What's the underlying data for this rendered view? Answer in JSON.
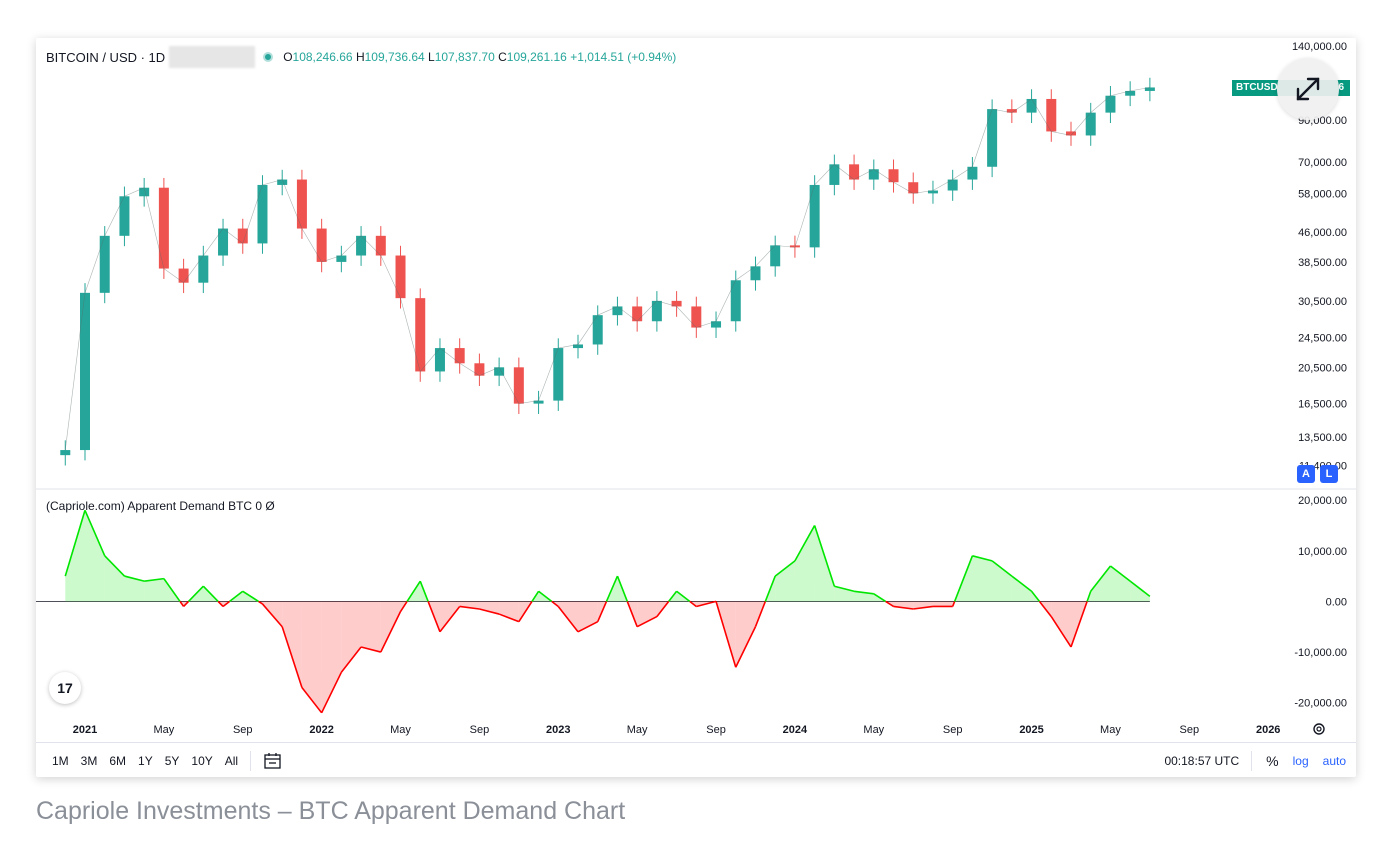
{
  "header": {
    "symbol": "BITCOIN / USD · 1D",
    "open_label": "O",
    "open": "108,246.66",
    "high_label": "H",
    "high": "109,736.64",
    "low_label": "L",
    "low": "107,837.70",
    "close_label": "C",
    "close": "109,261.16",
    "change": "+1,014.51 (+0.94%)"
  },
  "price_tag": "BTCUSD",
  "price_tag_tail": "6",
  "scale_buttons": {
    "a": "A",
    "l": "L"
  },
  "indicator": {
    "label": "(Capriole.com) Apparent Demand BTC 0  Ø"
  },
  "tv_logo": "17",
  "bottom_bar": {
    "ranges": [
      "1M",
      "3M",
      "6M",
      "1Y",
      "5Y",
      "10Y",
      "All"
    ],
    "time": "00:18:57 UTC",
    "percent": "%",
    "log": "log",
    "auto": "auto"
  },
  "caption": "Capriole Investments – BTC Apparent Demand Chart",
  "colors": {
    "up": "#26a69a",
    "down": "#ef5350",
    "pos": "#00e600",
    "neg": "#ff0000",
    "accent": "#2962ff"
  },
  "chart_data": [
    {
      "type": "candlestick",
      "title": "BITCOIN / USD · 1D",
      "yscale": "log",
      "ylim": [
        11500,
        140000
      ],
      "y_ticks": [
        "140,000.00",
        "90,000.00",
        "70,000.00",
        "58,000.00",
        "46,000.00",
        "38,500.00",
        "30,500.00",
        "24,500.00",
        "20,500.00",
        "16,500.00",
        "13,500.00",
        "11,400.00"
      ],
      "y_tick_values": [
        140000,
        90000,
        70000,
        58000,
        46000,
        38500,
        30500,
        24500,
        20500,
        16500,
        13500,
        11400
      ],
      "x_ticks": [
        "2021",
        "May",
        "Sep",
        "2022",
        "May",
        "Sep",
        "2023",
        "May",
        "Sep",
        "2024",
        "May",
        "Sep",
        "2025",
        "May",
        "Sep",
        "2026"
      ],
      "x_tick_dates": [
        "2021-01",
        "2021-05",
        "2021-09",
        "2022-01",
        "2022-05",
        "2022-09",
        "2023-01",
        "2023-05",
        "2023-09",
        "2024-01",
        "2024-05",
        "2024-09",
        "2025-01",
        "2025-05",
        "2025-09",
        "2026-01"
      ],
      "series": [
        {
          "dates": [
            "2020-12",
            "2021-01",
            "2021-02",
            "2021-03",
            "2021-04",
            "2021-05",
            "2021-06",
            "2021-07",
            "2021-08",
            "2021-09",
            "2021-10",
            "2021-11",
            "2021-12",
            "2022-01",
            "2022-02",
            "2022-03",
            "2022-04",
            "2022-05",
            "2022-06",
            "2022-07",
            "2022-08",
            "2022-09",
            "2022-10",
            "2022-11",
            "2022-12",
            "2023-01",
            "2023-02",
            "2023-03",
            "2023-04",
            "2023-05",
            "2023-06",
            "2023-07",
            "2023-08",
            "2023-09",
            "2023-10",
            "2023-11",
            "2023-12",
            "2024-01",
            "2024-02",
            "2024-03",
            "2024-04",
            "2024-05",
            "2024-06",
            "2024-07",
            "2024-08",
            "2024-09",
            "2024-10",
            "2024-11",
            "2024-12",
            "2025-01",
            "2025-02",
            "2025-03",
            "2025-04",
            "2025-05",
            "2025-06",
            "2025-07"
          ],
          "values": [
            12500,
            32000,
            45000,
            57000,
            60000,
            37000,
            34000,
            40000,
            47000,
            43000,
            61000,
            63000,
            47000,
            38500,
            40000,
            45000,
            40000,
            31000,
            20000,
            23000,
            21000,
            19500,
            20500,
            16500,
            16800,
            23000,
            23500,
            28000,
            29500,
            27000,
            30500,
            29500,
            26000,
            27000,
            34500,
            37500,
            42500,
            42000,
            61000,
            69000,
            63000,
            67000,
            62000,
            58000,
            59000,
            63000,
            68000,
            96000,
            94000,
            102000,
            84000,
            82000,
            94000,
            104000,
            107000,
            109261
          ]
        }
      ]
    },
    {
      "type": "area",
      "title": "(Capriole.com) Apparent Demand BTC 0 Ø",
      "ylim": [
        -25000,
        22000
      ],
      "y_ticks": [
        "20,000.00",
        "10,000.00",
        "0.00",
        "-10,000.00",
        "-20,000.00"
      ],
      "y_tick_values": [
        20000,
        10000,
        0,
        -10000,
        -20000
      ],
      "series": [
        {
          "dates": [
            "2020-12",
            "2021-01",
            "2021-02",
            "2021-03",
            "2021-04",
            "2021-05",
            "2021-06",
            "2021-07",
            "2021-08",
            "2021-09",
            "2021-10",
            "2021-11",
            "2021-12",
            "2022-01",
            "2022-02",
            "2022-03",
            "2022-04",
            "2022-05",
            "2022-06",
            "2022-07",
            "2022-08",
            "2022-09",
            "2022-10",
            "2022-11",
            "2022-12",
            "2023-01",
            "2023-02",
            "2023-03",
            "2023-04",
            "2023-05",
            "2023-06",
            "2023-07",
            "2023-08",
            "2023-09",
            "2023-10",
            "2023-11",
            "2023-12",
            "2024-01",
            "2024-02",
            "2024-03",
            "2024-04",
            "2024-05",
            "2024-06",
            "2024-07",
            "2024-08",
            "2024-09",
            "2024-10",
            "2024-11",
            "2024-12",
            "2025-01",
            "2025-02",
            "2025-03",
            "2025-04",
            "2025-05",
            "2025-06",
            "2025-07"
          ],
          "values": [
            5000,
            18000,
            9000,
            5000,
            4000,
            4500,
            -1000,
            3000,
            -1000,
            2000,
            -500,
            -5000,
            -17000,
            -22000,
            -14000,
            -9000,
            -10000,
            -2000,
            4000,
            -6000,
            -1000,
            -1500,
            -2500,
            -4000,
            2000,
            -1000,
            -6000,
            -4000,
            5000,
            -5000,
            -3000,
            2000,
            -1000,
            0,
            -13000,
            -5000,
            5000,
            8000,
            15000,
            3000,
            2000,
            1500,
            -1000,
            -1500,
            -1000,
            -1000,
            9000,
            8000,
            5000,
            2000,
            -3000,
            -9000,
            2000,
            7000,
            4000,
            1000
          ]
        }
      ]
    }
  ]
}
